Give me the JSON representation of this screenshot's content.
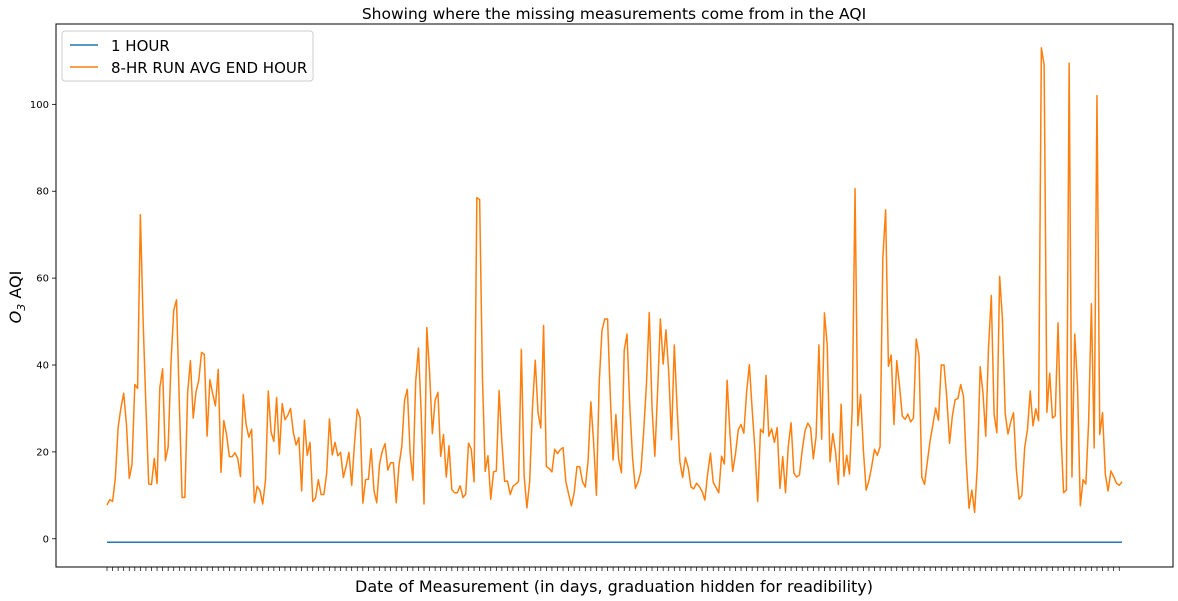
{
  "chart_data": {
    "type": "line",
    "title": "Showing where the missing measurements come from in the AQI",
    "xlabel": "Date of Measurement (in days, graduation hidden for readibility)",
    "ylabel_base": "O",
    "ylabel_sub": "3",
    "ylabel_rest": " AQI",
    "ylim": [
      -6.5,
      118.5
    ],
    "yticks": [
      0,
      20,
      40,
      60,
      80,
      100
    ],
    "yticklabels": [
      "0",
      "20",
      "40",
      "60",
      "80",
      "100"
    ],
    "grid": false,
    "legend": "top-left",
    "series": [
      {
        "name": "1 HOUR",
        "color": "#1f77b4",
        "constant": -0.8
      },
      {
        "name": "8-HR RUN AVG END HOUR",
        "color": "#ff7f0e",
        "values": [
          7.8,
          9.0,
          8.6,
          14.0,
          25.6,
          30.1,
          33.5,
          26.3,
          13.9,
          17.2,
          35.5,
          34.6,
          74.6,
          50.0,
          30.4,
          12.6,
          12.5,
          18.5,
          12.7,
          34.8,
          39.1,
          18.0,
          21.2,
          40.3,
          52.6,
          55.0,
          31.5,
          9.5,
          9.5,
          33.7,
          41.0,
          27.8,
          33.8,
          36.5,
          42.9,
          42.4,
          23.6,
          36.6,
          33.4,
          30.6,
          39.0,
          15.3,
          27.2,
          24.0,
          18.9,
          18.9,
          19.8,
          18.5,
          14.3,
          33.2,
          26.4,
          23.4,
          25.2,
          8.3,
          12.1,
          11.1,
          8.0,
          13.5,
          34.0,
          24.6,
          22.4,
          32.5,
          19.5,
          31.1,
          27.4,
          28.4,
          30.0,
          24.5,
          21.6,
          23.3,
          11.0,
          27.3,
          19.2,
          22.2,
          8.6,
          9.4,
          13.6,
          10.2,
          10.2,
          15.1,
          27.6,
          19.3,
          22.2,
          19.1,
          19.9,
          14.1,
          16.7,
          19.9,
          12.3,
          21.9,
          29.8,
          27.8,
          8.2,
          13.6,
          13.7,
          20.7,
          11.1,
          8.3,
          17.2,
          20.2,
          21.9,
          15.8,
          17.5,
          17.5,
          8.3,
          16.9,
          21.2,
          31.9,
          34.4,
          19.8,
          13.5,
          36.1,
          43.9,
          28.6,
          8.0,
          48.6,
          38.3,
          24.2,
          31.9,
          33.7,
          19.0,
          24.0,
          14.2,
          21.4,
          11.3,
          10.6,
          10.6,
          12.2,
          9.5,
          10.3,
          22.0,
          20.6,
          13.1,
          78.5,
          78.1,
          37.5,
          15.5,
          19.1,
          9.1,
          15.4,
          15.6,
          34.1,
          22.2,
          13.2,
          13.3,
          10.2,
          12.1,
          12.6,
          13.2,
          43.6,
          14.6,
          7.1,
          13.2,
          30.2,
          41.1,
          29.0,
          25.5,
          49.1,
          16.6,
          16.2,
          15.4,
          20.6,
          19.6,
          20.5,
          21.0,
          13.2,
          10.3,
          7.6,
          10.6,
          16.6,
          16.6,
          13.1,
          11.9,
          17.9,
          31.5,
          22.1,
          10.0,
          36.0,
          48.0,
          50.6,
          50.6,
          32.7,
          18.1,
          28.6,
          18.3,
          15.2,
          43.4,
          47.1,
          30.4,
          18.6,
          11.6,
          13.1,
          15.6,
          24.8,
          35.7,
          52.1,
          30.1,
          19.0,
          33.9,
          50.6,
          40.2,
          48.1,
          38.3,
          22.8,
          44.6,
          30.3,
          17.8,
          14.1,
          18.7,
          16.4,
          11.9,
          11.5,
          12.8,
          12.0,
          10.9,
          8.9,
          15.0,
          19.7,
          13.0,
          11.8,
          10.6,
          19.0,
          17.2,
          36.5,
          24.4,
          15.5,
          19.5,
          25.1,
          26.3,
          24.3,
          33.7,
          40.1,
          29.8,
          20.6,
          8.6,
          25.2,
          24.4,
          37.6,
          23.6,
          25.3,
          22.2,
          25.6,
          11.6,
          18.9,
          10.6,
          21.4,
          26.7,
          15.1,
          14.2,
          14.7,
          20.4,
          24.8,
          26.6,
          25.6,
          18.4,
          23.6,
          44.6,
          22.9,
          52.0,
          44.6,
          17.7,
          24.2,
          19.9,
          12.5,
          31.0,
          14.4,
          19.2,
          14.9,
          30.0,
          80.6,
          26.0,
          33.2,
          20.4,
          11.2,
          13.4,
          16.7,
          20.6,
          19.2,
          21.2,
          64.7,
          75.7,
          39.7,
          42.3,
          26.3,
          41.0,
          35.2,
          28.2,
          27.5,
          28.7,
          26.9,
          27.8,
          46.0,
          42.2,
          14.2,
          12.5,
          17.7,
          22.6,
          26.3,
          30.1,
          27.3,
          40.0,
          40.0,
          32.4,
          22.0,
          28.3,
          32.0,
          32.3,
          35.5,
          32.8,
          17.6,
          7.0,
          11.2,
          6.1,
          16.9,
          39.6,
          33.6,
          23.6,
          44.0,
          56.0,
          28.7,
          24.4,
          60.4,
          50.6,
          28.8,
          24.1,
          27.0,
          29.0,
          16.0,
          9.1,
          10.0,
          21.0,
          25.1,
          34.0,
          26.0,
          29.9,
          27.2,
          113.0,
          109.1,
          29.1,
          38.1,
          27.8,
          28.3,
          49.7,
          25.0,
          10.6,
          11.2,
          109.5,
          14.2,
          47.1,
          35.2,
          7.6,
          13.6,
          12.6,
          26.9,
          54.1,
          20.9,
          102.0,
          24.0,
          29.0,
          14.8,
          11.0,
          15.6,
          14.3,
          12.8,
          12.3,
          13.1
        ]
      }
    ]
  }
}
